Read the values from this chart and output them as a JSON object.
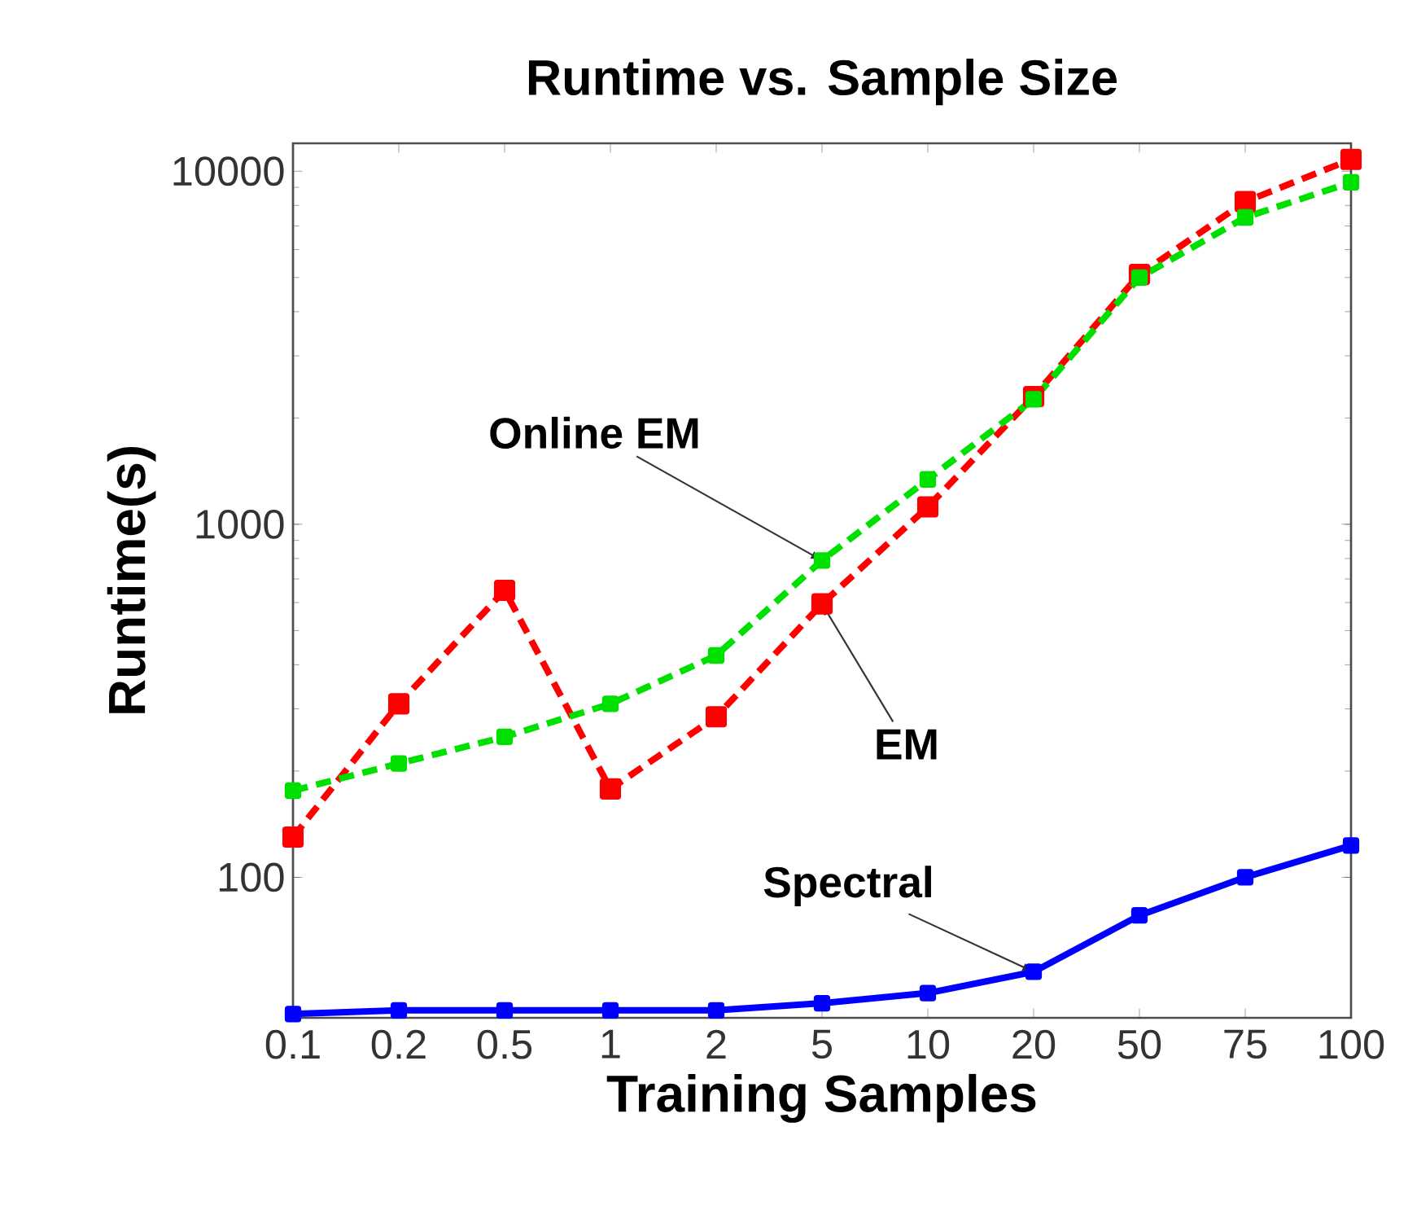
{
  "chart_data": {
    "type": "line",
    "title": "Runtime vs. Sample Size",
    "xlabel": "Training Samples",
    "ylabel": "Runtime(s)",
    "categories": [
      "0.1",
      "0.2",
      "0.5",
      "1",
      "2",
      "5",
      "10",
      "20",
      "50",
      "75",
      "100"
    ],
    "series": [
      {
        "color": "#ff0000",
        "line_style": "dashed",
        "values": [
          130,
          310,
          650,
          178,
          285,
          595,
          1120,
          2300,
          5100,
          8200,
          10800
        ]
      },
      {
        "color": "#00e000",
        "line_style": "dashed",
        "values": [
          176,
          210,
          250,
          310,
          425,
          790,
          1340,
          2260,
          5000,
          7400,
          9300
        ]
      },
      {
        "color": "#0000ff",
        "line_style": "solid",
        "values": [
          41,
          42,
          42,
          42,
          42,
          44,
          47,
          54,
          78,
          100,
          123
        ]
      }
    ],
    "annotations": [
      {
        "text": "Online EM",
        "x": "5",
        "y": 790
      },
      {
        "text": "EM",
        "x": "5",
        "y": 595
      },
      {
        "text": "Spectral",
        "x": "20",
        "y": 54
      }
    ],
    "log": "y",
    "ylim": [
      40,
      12000
    ],
    "yticks": [
      100,
      1000,
      10000
    ],
    "marker": "square",
    "grid": false
  }
}
